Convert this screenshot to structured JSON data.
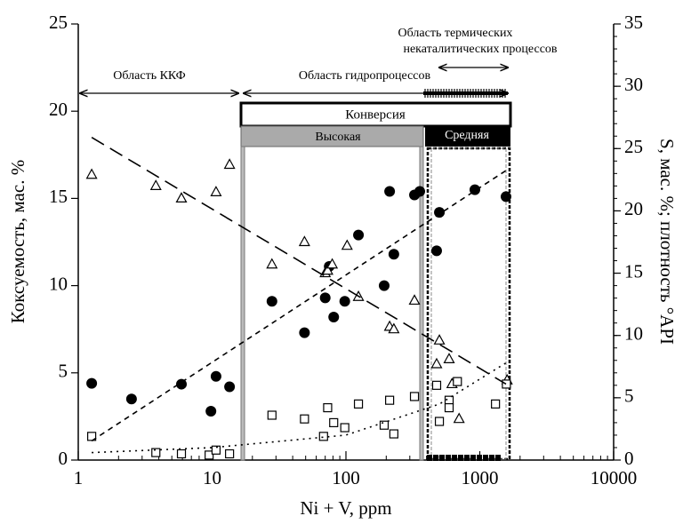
{
  "chart_data": {
    "type": "scatter",
    "xlabel": "Ni + V, ppm",
    "ylabel": "Коксуемость, мас. %",
    "y2label": "S, мас. %; плотность °API",
    "xscale": "log",
    "xlim": [
      1,
      10000
    ],
    "xticks": [
      1,
      10,
      100,
      1000,
      10000
    ],
    "ylim": [
      0,
      25
    ],
    "yticks": [
      0,
      5,
      10,
      15,
      20,
      25
    ],
    "y2lim": [
      0,
      35
    ],
    "y2ticks": [
      0,
      5,
      10,
      15,
      20,
      25,
      30,
      35
    ],
    "annotations": [
      "Область ККФ",
      "Область гидропроцессов",
      "Область термических",
      "некаталитических процессов",
      "Конверсия",
      "Высокая",
      "Средняя"
    ],
    "series": [
      {
        "marker": "circle",
        "color": "#000000",
        "axis": "y",
        "x": [
          1.26,
          2.5,
          5.9,
          9.8,
          10.7,
          13.5,
          28,
          49,
          70,
          75,
          81,
          98,
          124,
          193,
          212,
          228,
          325,
          356,
          476,
          499,
          919,
          1570
        ],
        "values": [
          4.4,
          3.5,
          4.35,
          2.8,
          4.8,
          4.2,
          9.1,
          7.3,
          9.3,
          11.1,
          8.2,
          9.1,
          12.9,
          10,
          15.4,
          11.8,
          15.2,
          15.4,
          12,
          14.2,
          15.5,
          15.1
        ]
      },
      {
        "marker": "triangle",
        "color": "#000000",
        "axis": "y2",
        "x": [
          1.26,
          3.8,
          5.9,
          10.7,
          13.5,
          28,
          49,
          70,
          73,
          79,
          102,
          124,
          212,
          228,
          325,
          476,
          499,
          590,
          620,
          700,
          1600
        ],
        "values": [
          22.9,
          22.0,
          21.0,
          21.5,
          23.7,
          15.7,
          17.5,
          15.0,
          15.2,
          15.7,
          17.2,
          13.1,
          10.7,
          10.5,
          12.8,
          7.7,
          9.6,
          8.1,
          6.1,
          3.3,
          6.4
        ]
      },
      {
        "marker": "square",
        "color": "#000000",
        "axis": "y2",
        "x": [
          1.26,
          3.8,
          5.9,
          9.5,
          10.7,
          13.5,
          28,
          49,
          68,
          73,
          81,
          98,
          124,
          193,
          212,
          228,
          325,
          476,
          499,
          590,
          590,
          680,
          1310,
          1580
        ],
        "values": [
          1.9,
          0.6,
          0.5,
          0.4,
          0.8,
          0.5,
          3.6,
          3.3,
          1.9,
          4.2,
          3.0,
          2.6,
          4.5,
          2.8,
          4.8,
          2.1,
          5.1,
          6.0,
          3.1,
          4.8,
          4.2,
          6.3,
          4.5,
          6.1
        ]
      },
      {
        "marker": "none",
        "line": "dash-long",
        "color": "#000000",
        "axis": "y2",
        "x": [
          1.26,
          1570
        ],
        "values": [
          25.9,
          6.1
        ]
      },
      {
        "marker": "none",
        "line": "dash-short",
        "color": "#000000",
        "axis": "y",
        "x": [
          1.26,
          1570
        ],
        "values": [
          1.1,
          16.6
        ]
      },
      {
        "marker": "none",
        "line": "dot",
        "color": "#000000",
        "axis": "y2",
        "x": [
          1.26,
          10,
          100,
          500,
          1570
        ],
        "values": [
          0.6,
          1.0,
          2.0,
          4.5,
          7.8
        ]
      }
    ]
  }
}
